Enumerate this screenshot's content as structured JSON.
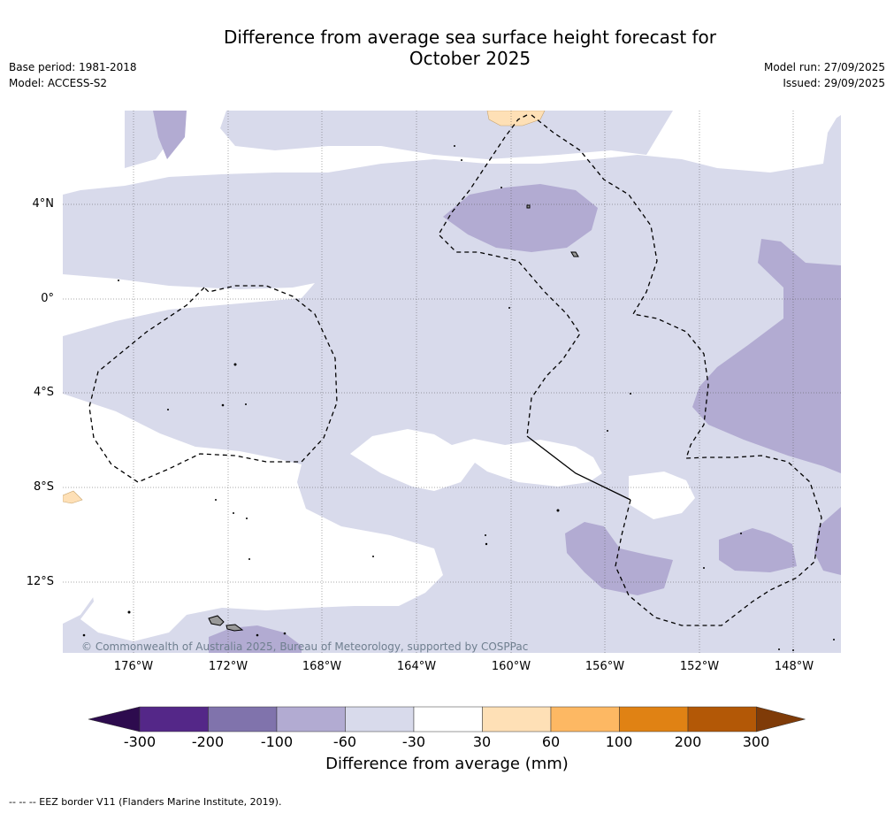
{
  "header": {
    "title_line1": "Difference from average sea surface height forecast for",
    "title_line2": "October 2025",
    "base_period": "Base period: 1981-2018",
    "model": "Model: ACCESS-S2",
    "model_run": "Model run: 27/09/2025",
    "issued": "Issued: 29/09/2025"
  },
  "map": {
    "lat_labels": [
      "4°N",
      "0°",
      "4°S",
      "8°S",
      "12°S"
    ],
    "lon_labels": [
      "176°W",
      "172°W",
      "168°W",
      "164°W",
      "160°W",
      "156°W",
      "152°W",
      "148°W"
    ],
    "copyright": "© Commonwealth of Australia 2025, Bureau of Meteorology, supported by COSPPac"
  },
  "colorbar": {
    "ticks": [
      "-300",
      "-200",
      "-100",
      "-60",
      "-30",
      "30",
      "60",
      "100",
      "200",
      "300"
    ],
    "label": "Difference from average (mm)",
    "colors": [
      "#2d0b4e",
      "#542788",
      "#8073ac",
      "#b2abd2",
      "#d8daeb",
      "#ffffff",
      "#fee0b6",
      "#fdb863",
      "#e08214",
      "#b35806",
      "#7f3b08"
    ]
  },
  "footnote": "--  --  -- EEZ border V11 (Flanders Marine Institute, 2019)."
}
